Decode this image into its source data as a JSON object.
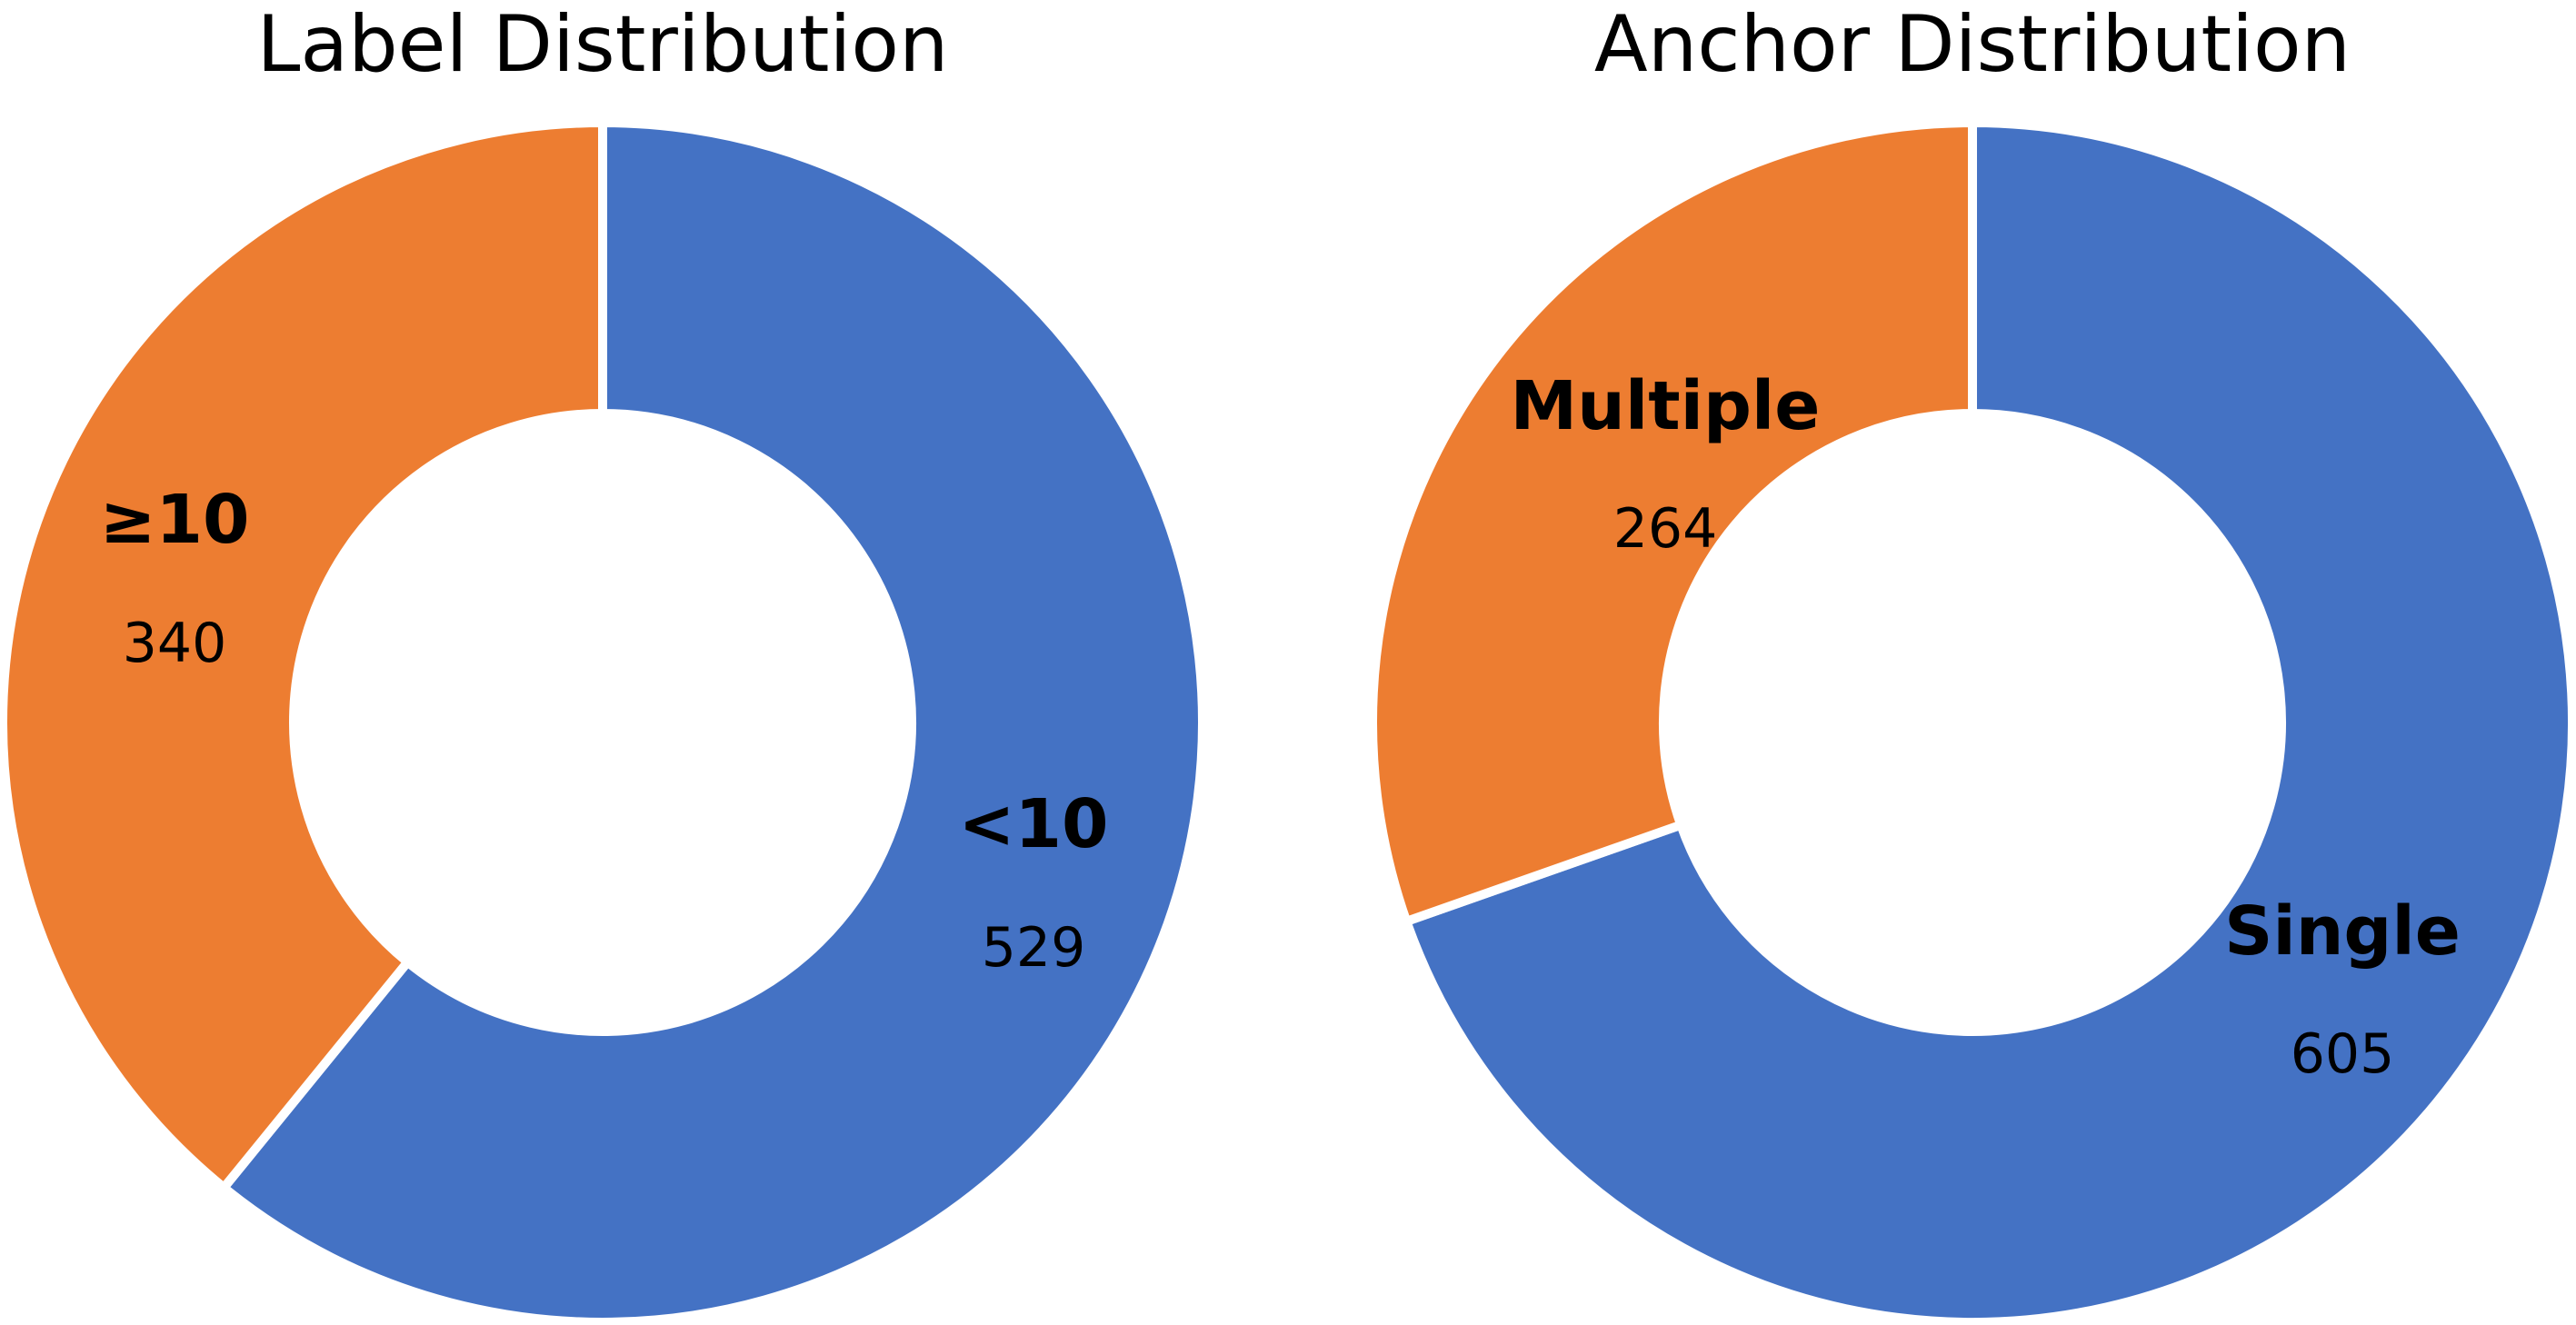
{
  "chart_data": [
    {
      "type": "pie",
      "title": "Label Distribution",
      "slices": [
        {
          "label": "<10",
          "value": 529,
          "color": "#4472C4"
        },
        {
          "label": "≥10",
          "value": 340,
          "color": "#ED7D31"
        }
      ]
    },
    {
      "type": "pie",
      "title": "Anchor Distribution",
      "slices": [
        {
          "label": "Single",
          "value": 605,
          "color": "#4472C4"
        },
        {
          "label": "Multiple",
          "value": 264,
          "color": "#ED7D31"
        }
      ]
    }
  ]
}
